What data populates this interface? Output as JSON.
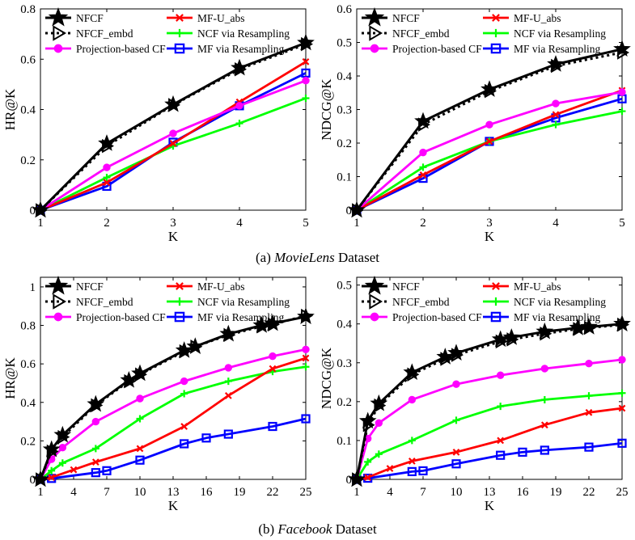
{
  "captions": {
    "a": {
      "label": "(a)",
      "name": "MovieLens",
      "suffix": "Dataset"
    },
    "b": {
      "label": "(b)",
      "name": "Facebook",
      "suffix": "Dataset"
    }
  },
  "colors": {
    "NFCF": "#000000",
    "NFCF_embd": "#000000",
    "Projection-based CF": "#ff00ff",
    "MF-U_abs": "#ff0000",
    "NCF via Resampling": "#00ff00",
    "MF via Resampling": "#0000ff"
  },
  "chart_data": [
    {
      "type": "line",
      "title": "",
      "xlabel": "K",
      "ylabel": "HR@K",
      "xlim": [
        1,
        5
      ],
      "ylim": [
        0,
        0.8
      ],
      "xticks": [
        1,
        2,
        3,
        4,
        5
      ],
      "yticks": [
        0,
        0.2,
        0.4,
        0.6,
        0.8
      ],
      "legend": [
        "NFCF",
        "MF-U_abs",
        "NFCF_embd",
        "NCF via Resampling",
        "Projection-based CF",
        "MF via Resampling"
      ],
      "series": [
        {
          "name": "NFCF",
          "x": [
            1,
            2,
            3,
            4,
            5
          ],
          "values": [
            0,
            0.265,
            0.42,
            0.565,
            0.665
          ]
        },
        {
          "name": "NFCF_embd",
          "x": [
            1,
            2,
            3,
            4,
            5
          ],
          "values": [
            0,
            0.255,
            0.418,
            0.56,
            0.66
          ]
        },
        {
          "name": "Projection-based CF",
          "x": [
            1,
            2,
            3,
            4,
            5
          ],
          "values": [
            0,
            0.17,
            0.305,
            0.415,
            0.515
          ]
        },
        {
          "name": "MF-U_abs",
          "x": [
            1,
            2,
            3,
            4,
            5
          ],
          "values": [
            0,
            0.11,
            0.265,
            0.43,
            0.59
          ]
        },
        {
          "name": "NCF via Resampling",
          "x": [
            1,
            2,
            3,
            4,
            5
          ],
          "values": [
            0,
            0.13,
            0.255,
            0.345,
            0.445
          ]
        },
        {
          "name": "MF via Resampling",
          "x": [
            1,
            2,
            3,
            4,
            5
          ],
          "values": [
            0,
            0.095,
            0.27,
            0.415,
            0.545
          ]
        }
      ]
    },
    {
      "type": "line",
      "title": "",
      "xlabel": "K",
      "ylabel": "NDCG@K",
      "xlim": [
        1,
        5
      ],
      "ylim": [
        0,
        0.6
      ],
      "xticks": [
        1,
        2,
        3,
        4,
        5
      ],
      "yticks": [
        0,
        0.1,
        0.2,
        0.3,
        0.4,
        0.5,
        0.6
      ],
      "legend": [
        "NFCF",
        "MF-U_abs",
        "NFCF_embd",
        "NCF via Resampling",
        "Projection-based CF",
        "MF via Resampling"
      ],
      "series": [
        {
          "name": "NFCF",
          "x": [
            1,
            2,
            3,
            4,
            5
          ],
          "values": [
            0,
            0.265,
            0.36,
            0.435,
            0.48
          ]
        },
        {
          "name": "NFCF_embd",
          "x": [
            1,
            2,
            3,
            4,
            5
          ],
          "values": [
            0,
            0.255,
            0.355,
            0.43,
            0.47
          ]
        },
        {
          "name": "Projection-based CF",
          "x": [
            1,
            2,
            3,
            4,
            5
          ],
          "values": [
            0,
            0.172,
            0.255,
            0.318,
            0.352
          ]
        },
        {
          "name": "MF-U_abs",
          "x": [
            1,
            2,
            3,
            4,
            5
          ],
          "values": [
            0,
            0.105,
            0.205,
            0.285,
            0.357
          ]
        },
        {
          "name": "NCF via Resampling",
          "x": [
            1,
            2,
            3,
            4,
            5
          ],
          "values": [
            0,
            0.128,
            0.205,
            0.255,
            0.295
          ]
        },
        {
          "name": "MF via Resampling",
          "x": [
            1,
            2,
            3,
            4,
            5
          ],
          "values": [
            0,
            0.095,
            0.205,
            0.275,
            0.332
          ]
        }
      ]
    },
    {
      "type": "line",
      "title": "",
      "xlabel": "K",
      "ylabel": "HR@K",
      "xlim": [
        1,
        25
      ],
      "ylim": [
        0,
        1.05
      ],
      "xticks": [
        1,
        4,
        7,
        10,
        13,
        16,
        19,
        22,
        25
      ],
      "yticks": [
        0,
        0.2,
        0.4,
        0.6,
        0.8,
        1
      ],
      "legend": [
        "NFCF",
        "MF-U_abs",
        "NFCF_embd",
        "NCF via Resampling",
        "Projection-based CF",
        "MF via Resampling"
      ],
      "series": [
        {
          "name": "NFCF",
          "x": [
            1,
            2,
            3,
            6,
            9,
            10,
            14,
            15,
            18,
            21,
            22,
            25
          ],
          "values": [
            0,
            0.155,
            0.23,
            0.39,
            0.515,
            0.55,
            0.67,
            0.69,
            0.755,
            0.8,
            0.81,
            0.845
          ]
        },
        {
          "name": "NFCF_embd",
          "x": [
            1,
            2,
            3,
            6,
            9,
            10,
            14,
            15,
            18,
            21,
            22,
            25
          ],
          "values": [
            0,
            0.145,
            0.22,
            0.385,
            0.51,
            0.545,
            0.665,
            0.69,
            0.75,
            0.795,
            0.805,
            0.85
          ]
        },
        {
          "name": "Projection-based CF",
          "x": [
            1,
            2,
            3,
            6,
            10,
            14,
            18,
            22,
            25
          ],
          "values": [
            0,
            0.105,
            0.165,
            0.3,
            0.42,
            0.51,
            0.58,
            0.64,
            0.675
          ]
        },
        {
          "name": "MF-U_abs",
          "x": [
            1,
            2,
            4,
            6,
            10,
            14,
            18,
            22,
            25
          ],
          "values": [
            0,
            0.01,
            0.05,
            0.09,
            0.16,
            0.275,
            0.435,
            0.575,
            0.63
          ]
        },
        {
          "name": "NCF via Resampling",
          "x": [
            1,
            2,
            3,
            6,
            10,
            14,
            18,
            22,
            25
          ],
          "values": [
            0,
            0.045,
            0.085,
            0.16,
            0.315,
            0.445,
            0.51,
            0.56,
            0.585
          ]
        },
        {
          "name": "MF via Resampling",
          "x": [
            1,
            2,
            6,
            7,
            10,
            14,
            16,
            18,
            22,
            25
          ],
          "values": [
            0,
            0.005,
            0.035,
            0.045,
            0.1,
            0.185,
            0.215,
            0.235,
            0.275,
            0.315
          ]
        }
      ]
    },
    {
      "type": "line",
      "title": "",
      "xlabel": "K",
      "ylabel": "NDCG@K",
      "xlim": [
        1,
        25
      ],
      "ylim": [
        0,
        0.52
      ],
      "xticks": [
        1,
        4,
        7,
        10,
        13,
        16,
        19,
        22,
        25
      ],
      "yticks": [
        0,
        0.1,
        0.2,
        0.3,
        0.4,
        0.5
      ],
      "legend": [
        "NFCF",
        "MF-U_abs",
        "NFCF_embd",
        "NCF via Resampling",
        "Projection-based CF",
        "MF via Resampling"
      ],
      "series": [
        {
          "name": "NFCF",
          "x": [
            1,
            2,
            3,
            6,
            9,
            10,
            14,
            15,
            18,
            21,
            22,
            25
          ],
          "values": [
            0,
            0.15,
            0.195,
            0.275,
            0.315,
            0.325,
            0.36,
            0.365,
            0.38,
            0.39,
            0.392,
            0.4
          ]
        },
        {
          "name": "NFCF_embd",
          "x": [
            1,
            2,
            3,
            6,
            9,
            10,
            14,
            15,
            18,
            21,
            22,
            25
          ],
          "values": [
            0,
            0.14,
            0.19,
            0.27,
            0.31,
            0.32,
            0.355,
            0.36,
            0.375,
            0.387,
            0.39,
            0.398
          ]
        },
        {
          "name": "Projection-based CF",
          "x": [
            1,
            2,
            3,
            6,
            10,
            14,
            18,
            22,
            25
          ],
          "values": [
            0,
            0.105,
            0.145,
            0.205,
            0.245,
            0.268,
            0.285,
            0.298,
            0.308
          ]
        },
        {
          "name": "MF-U_abs",
          "x": [
            1,
            2,
            4,
            6,
            10,
            14,
            18,
            22,
            25
          ],
          "values": [
            0,
            0.005,
            0.028,
            0.047,
            0.07,
            0.1,
            0.14,
            0.172,
            0.183
          ]
        },
        {
          "name": "NCF via Resampling",
          "x": [
            1,
            2,
            3,
            6,
            10,
            14,
            18,
            22,
            25
          ],
          "values": [
            0,
            0.045,
            0.065,
            0.1,
            0.152,
            0.188,
            0.205,
            0.215,
            0.222
          ]
        },
        {
          "name": "MF via Resampling",
          "x": [
            1,
            2,
            6,
            7,
            10,
            14,
            16,
            18,
            22,
            25
          ],
          "values": [
            0,
            0.003,
            0.02,
            0.022,
            0.04,
            0.062,
            0.07,
            0.075,
            0.083,
            0.093
          ]
        }
      ]
    }
  ]
}
